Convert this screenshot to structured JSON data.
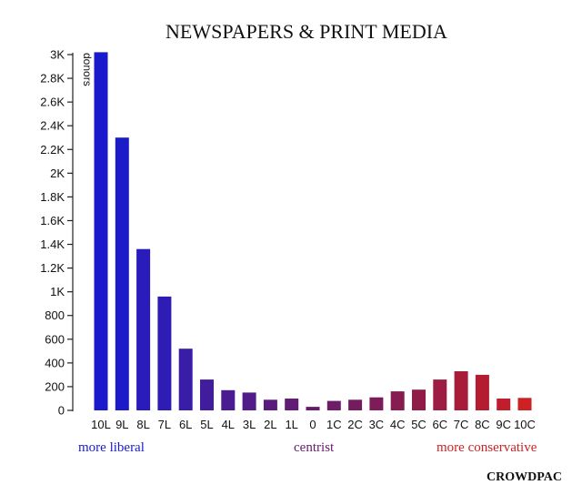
{
  "chart_data": {
    "type": "bar",
    "title": "NEWSPAPERS & PRINT MEDIA",
    "ylabel": "donors",
    "xlabel": "",
    "ylim": [
      0,
      3000
    ],
    "y_ticks": [
      "0",
      "200",
      "400",
      "600",
      "800",
      "1K",
      "1.2K",
      "1.4K",
      "1.6K",
      "1.8K",
      "2K",
      "2.2K",
      "2.4K",
      "2.6K",
      "2.8K",
      "3K"
    ],
    "y_tick_values": [
      0,
      200,
      400,
      600,
      800,
      1000,
      1200,
      1400,
      1600,
      1800,
      2000,
      2200,
      2400,
      2600,
      2800,
      3000
    ],
    "categories": [
      "10L",
      "9L",
      "8L",
      "7L",
      "6L",
      "5L",
      "4L",
      "3L",
      "2L",
      "1L",
      "0",
      "1C",
      "2C",
      "3C",
      "4C",
      "5C",
      "6C",
      "7C",
      "8C",
      "9C",
      "10C"
    ],
    "values": [
      3020,
      2300,
      1360,
      960,
      520,
      260,
      170,
      150,
      90,
      100,
      30,
      80,
      90,
      110,
      160,
      175,
      260,
      330,
      300,
      100,
      105
    ],
    "colors": [
      "#1a1acc",
      "#1c1bc8",
      "#2a1cbc",
      "#2f1cb4",
      "#391ca8",
      "#411c9c",
      "#491c92",
      "#511c88",
      "#591c7e",
      "#611c74",
      "#661a6c",
      "#6d1c66",
      "#751c5e",
      "#7d1c58",
      "#871c50",
      "#8f1c48",
      "#9c1c42",
      "#a81c3a",
      "#b41c32",
      "#c01e2c",
      "#cc2224"
    ],
    "grid": false,
    "legend": "none",
    "annotations": {
      "left": {
        "text": "more liberal",
        "color": "#1a1acc"
      },
      "center": {
        "text": "centrist",
        "color": "#661a6c"
      },
      "right": {
        "text": "more conservative",
        "color": "#cc2224"
      }
    },
    "source": "CROWDPAC"
  }
}
